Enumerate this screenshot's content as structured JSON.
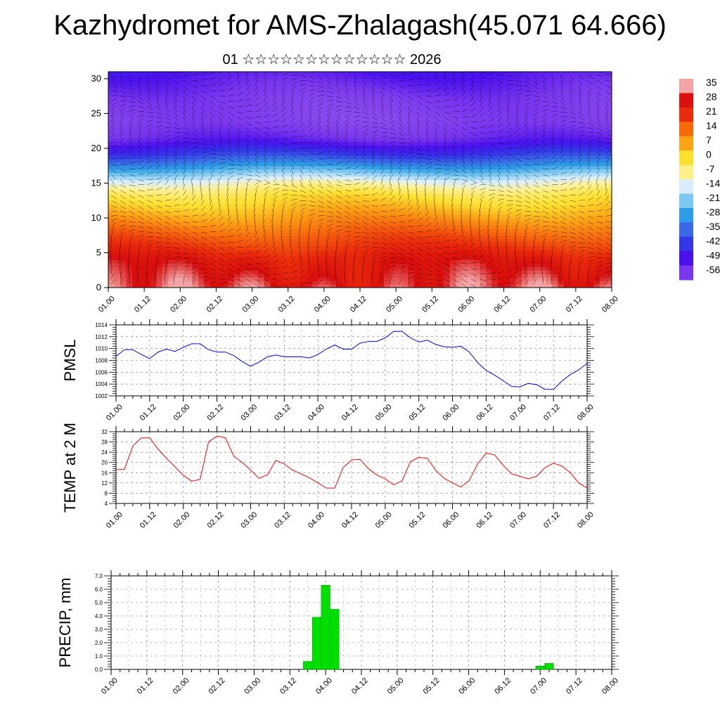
{
  "header": {
    "title": "Kazhydromet for AMS-Zhalagash(45.071 64.666)",
    "subtitle": "01 ☆☆☆☆☆☆☆☆☆☆☆☆☆ 2026"
  },
  "chart_data": [
    {
      "type": "heatmap",
      "title": "",
      "xlabel": "",
      "ylabel": "",
      "x_ticks": [
        "01.00",
        "01.12",
        "02.00",
        "02.12",
        "03.00",
        "03.12",
        "04.00",
        "04.12",
        "05.00",
        "05.12",
        "06.00",
        "06.12",
        "07.00",
        "07.12",
        "08.00"
      ],
      "xlim": [
        0,
        168
      ],
      "ylim": [
        0,
        31
      ],
      "y_ticks": [
        0,
        5,
        10,
        15,
        20,
        25,
        30
      ],
      "overlay": "wind vectors",
      "colorbar": {
        "labels": [
          "35",
          "28",
          "21",
          "14",
          "7",
          "0",
          "-7",
          "-14",
          "-21",
          "-28",
          "-35",
          "-42",
          "-49",
          "-56"
        ],
        "colors": [
          "#f4a4a4",
          "#dd1010",
          "#e82c0c",
          "#f66a0c",
          "#fca414",
          "#fde02e",
          "#fff08a",
          "#d8ecff",
          "#7cc8f2",
          "#2c9ce6",
          "#3a68e6",
          "#3434e8",
          "#4a10ee",
          "#7a36ee"
        ]
      },
      "profile": [
        {
          "z": 0,
          "t": 30
        },
        {
          "z": 4,
          "t": 25
        },
        {
          "z": 8,
          "t": 14
        },
        {
          "z": 11,
          "t": 5
        },
        {
          "z": 13.5,
          "t": -2
        },
        {
          "z": 15,
          "t": -10
        },
        {
          "z": 17,
          "t": -25
        },
        {
          "z": 19,
          "t": -40
        },
        {
          "z": 21.5,
          "t": -54
        },
        {
          "z": 24,
          "t": -60
        },
        {
          "z": 27,
          "t": -58
        },
        {
          "z": 31,
          "t": -50
        }
      ]
    },
    {
      "type": "line",
      "ylabel": "PMSL",
      "ylim": [
        1002,
        1014
      ],
      "y_ticks": [
        "1002",
        "1004",
        "1006",
        "1008",
        "1010",
        "1012",
        "1014"
      ],
      "x_ticks": [
        "01.00",
        "01.12",
        "02.00",
        "02.12",
        "03.00",
        "03.12",
        "04.00",
        "04.12",
        "05.00",
        "05.12",
        "06.00",
        "06.12",
        "07.00",
        "07.12",
        "08.00"
      ],
      "x": [
        0,
        3,
        6,
        9,
        12,
        15,
        18,
        21,
        24,
        27,
        30,
        33,
        36,
        39,
        42,
        45,
        48,
        51,
        54,
        57,
        60,
        63,
        66,
        69,
        72,
        75,
        78,
        81,
        84,
        87,
        90,
        93,
        96,
        99,
        102,
        105,
        108,
        111,
        114,
        117,
        120,
        123,
        126,
        129,
        132,
        135,
        138,
        141,
        144,
        147,
        150,
        153,
        156,
        159,
        162,
        165,
        168
      ],
      "series": [
        {
          "color": "#0000ff",
          "values": [
            1008.7,
            1009.8,
            1009.8,
            1009.0,
            1008.3,
            1009.4,
            1009.9,
            1009.5,
            1010.2,
            1010.8,
            1010.8,
            1009.8,
            1009.4,
            1009.4,
            1008.8,
            1007.8,
            1007.0,
            1007.7,
            1008.6,
            1008.9,
            1008.6,
            1008.6,
            1008.6,
            1008.4,
            1009.0,
            1009.9,
            1010.6,
            1009.9,
            1009.9,
            1010.9,
            1011.2,
            1011.2,
            1011.8,
            1012.9,
            1012.9,
            1011.8,
            1011.1,
            1011.4,
            1010.7,
            1010.3,
            1010.2,
            1010.4,
            1009.4,
            1007.6,
            1006.3,
            1005.5,
            1004.6,
            1003.6,
            1003.5,
            1004.1,
            1003.9,
            1003.1,
            1003.1,
            1004.5,
            1005.6,
            1006.4,
            1007.5
          ]
        }
      ]
    },
    {
      "type": "line",
      "ylabel": "TEMP at 2 M",
      "ylim": [
        4,
        32
      ],
      "y_ticks": [
        "4",
        "8",
        "12",
        "16",
        "20",
        "24",
        "28",
        "32"
      ],
      "x_ticks": [
        "01.00",
        "01.12",
        "02.00",
        "02.12",
        "03.00",
        "03.12",
        "04.00",
        "04.12",
        "05.00",
        "05.12",
        "06.00",
        "06.12",
        "07.00",
        "07.12",
        "08.00"
      ],
      "x": [
        0,
        3,
        6,
        9,
        12,
        15,
        18,
        21,
        24,
        27,
        30,
        33,
        36,
        39,
        42,
        45,
        48,
        51,
        54,
        57,
        60,
        63,
        66,
        69,
        72,
        75,
        78,
        81,
        84,
        87,
        90,
        93,
        96,
        99,
        102,
        105,
        108,
        111,
        114,
        117,
        120,
        123,
        126,
        129,
        132,
        135,
        138,
        141,
        144,
        147,
        150,
        153,
        156,
        159,
        162,
        165,
        168
      ],
      "series": [
        {
          "color": "#ff0000",
          "values": [
            17.2,
            17.3,
            26.4,
            29.6,
            29.6,
            25.2,
            21.6,
            18.3,
            15.0,
            12.7,
            13.4,
            28.0,
            30.3,
            29.6,
            22.5,
            20.0,
            17.0,
            13.8,
            15.2,
            20.8,
            19.4,
            17.0,
            15.5,
            14.0,
            12.0,
            10.0,
            10.0,
            18.0,
            21.0,
            21.2,
            17.6,
            15.1,
            13.6,
            11.3,
            12.8,
            20.3,
            22.0,
            21.6,
            17.0,
            13.8,
            12.0,
            10.4,
            13.0,
            19.5,
            23.6,
            23.0,
            19.0,
            15.6,
            14.6,
            13.6,
            14.6,
            18.0,
            19.7,
            18.6,
            16.0,
            12.0,
            10.0
          ]
        }
      ]
    },
    {
      "type": "bar",
      "ylabel": "PRECIP, mm",
      "ylim": [
        0,
        7
      ],
      "y_ticks": [
        "0.0",
        "1.0",
        "2.0",
        "3.0",
        "4.0",
        "5.0",
        "6.0",
        "7.0"
      ],
      "x_ticks": [
        "01.00",
        "01.12",
        "02.00",
        "02.12",
        "03.00",
        "03.12",
        "04.00",
        "04.12",
        "05.00",
        "05.12",
        "06.00",
        "06.12",
        "07.00",
        "07.12",
        "08.00"
      ],
      "bar_color": "#00e000",
      "bars": [
        {
          "x": 66,
          "value": 0.6
        },
        {
          "x": 69,
          "value": 3.9
        },
        {
          "x": 72,
          "value": 6.3
        },
        {
          "x": 75,
          "value": 4.5
        },
        {
          "x": 144,
          "value": 0.25
        },
        {
          "x": 147,
          "value": 0.45
        }
      ]
    }
  ]
}
